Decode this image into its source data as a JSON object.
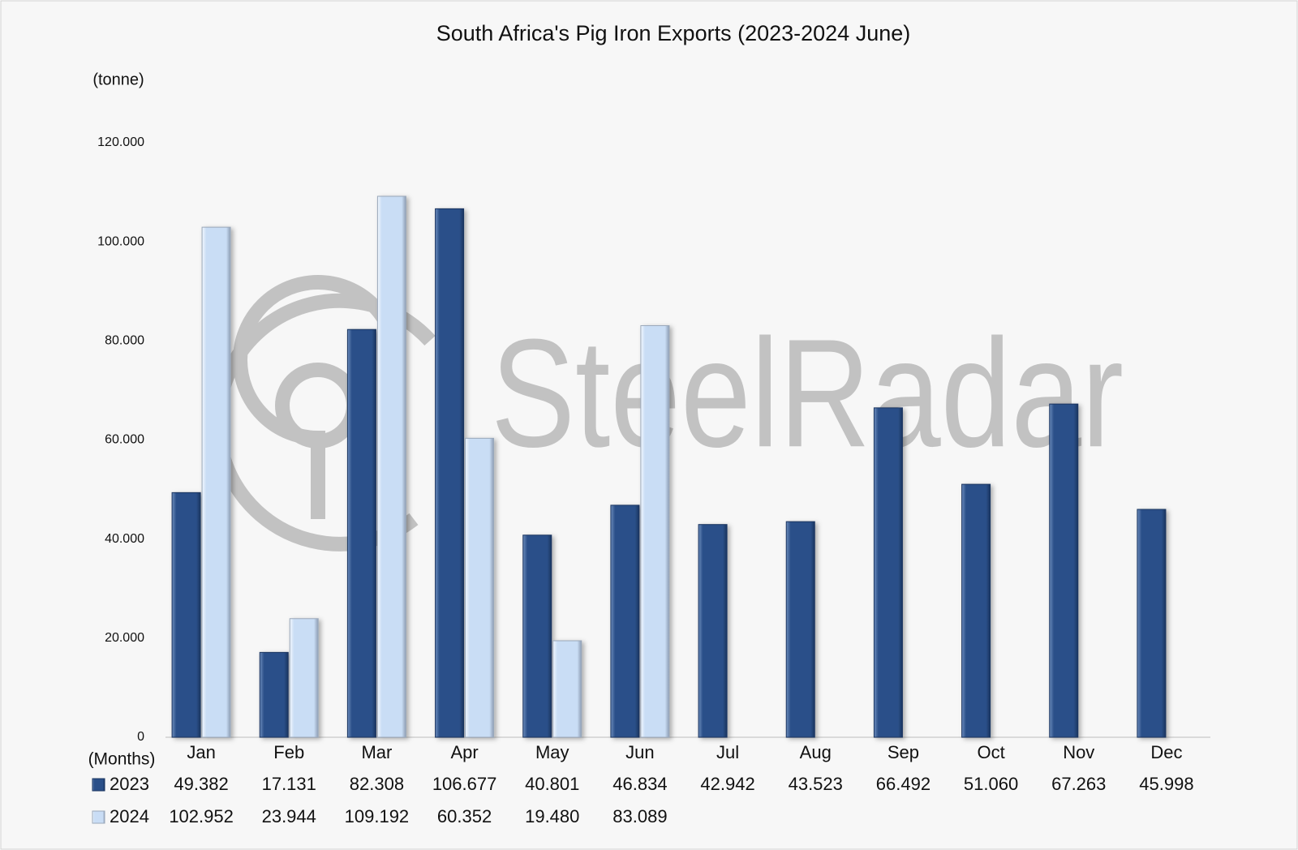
{
  "chart_data": {
    "type": "bar",
    "title": "South Africa's Pig Iron Exports (2023-2024 June)",
    "y_label": "(tonne)",
    "x_label": "(Months)",
    "watermark": "SteelRadar",
    "categories": [
      "Jan",
      "Feb",
      "Mar",
      "Apr",
      "May",
      "Jun",
      "Jul",
      "Aug",
      "Sep",
      "Oct",
      "Nov",
      "Dec"
    ],
    "series": [
      {
        "name": "2023",
        "color": "#2b5089",
        "values": [
          49382,
          17131,
          82308,
          106677,
          40801,
          46834,
          42942,
          43523,
          66492,
          51060,
          67263,
          45998
        ],
        "value_labels": [
          "49.382",
          "17.131",
          "82.308",
          "106.677",
          "40.801",
          "46.834",
          "42.942",
          "43.523",
          "66.492",
          "51.060",
          "67.263",
          "45.998"
        ]
      },
      {
        "name": "2024",
        "color": "#c9ddf5",
        "values": [
          102952,
          23944,
          109192,
          60352,
          19480,
          83089,
          null,
          null,
          null,
          null,
          null,
          null
        ],
        "value_labels": [
          "102.952",
          "23.944",
          "109.192",
          "60.352",
          "19.480",
          "83.089",
          null,
          null,
          null,
          null,
          null,
          null
        ]
      }
    ],
    "ylim": [
      0,
      120000
    ],
    "yticks": [
      0,
      {
        "value": 20000,
        "label": "20.000"
      },
      {
        "value": 40000,
        "label": "40.000"
      },
      {
        "value": 60000,
        "label": "60.000"
      },
      {
        "value": 80000,
        "label": "80.000"
      },
      {
        "value": 100000,
        "label": "100.000"
      },
      {
        "value": 120000,
        "label": "120.000"
      }
    ],
    "grid": false
  }
}
